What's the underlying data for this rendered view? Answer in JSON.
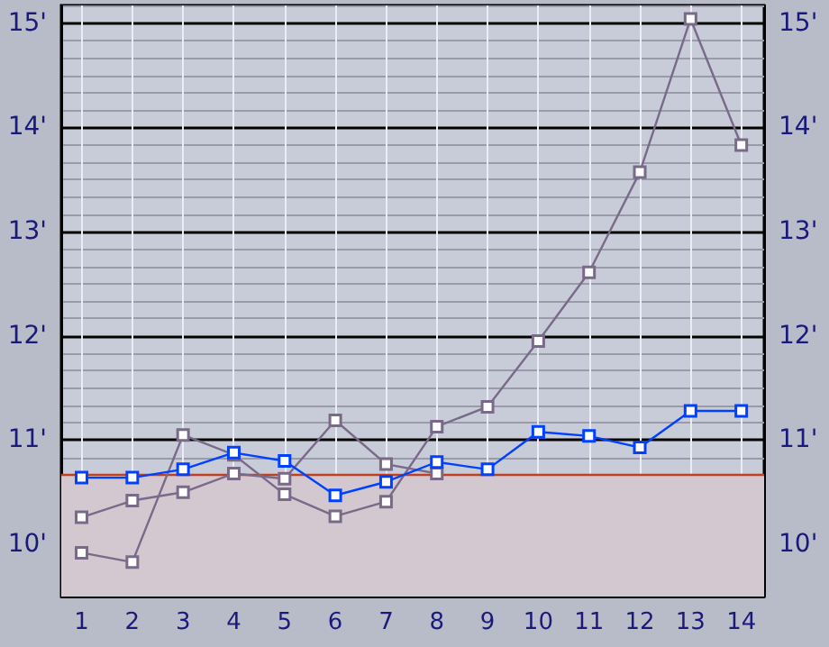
{
  "chart_data": {
    "type": "line",
    "x": [
      1,
      2,
      3,
      4,
      5,
      6,
      7,
      8,
      9,
      10,
      11,
      12,
      13,
      14
    ],
    "series": [
      {
        "color": "#0040ff",
        "values": [
          10.64,
          10.64,
          10.72,
          10.88,
          10.8,
          10.47,
          10.6,
          10.79,
          10.72,
          11.08,
          11.04,
          10.93,
          11.28,
          11.28
        ]
      },
      {
        "color": "#7a6a8a",
        "values": [
          9.92,
          9.83,
          11.05,
          10.86,
          10.48,
          10.27,
          10.41,
          11.13,
          11.32,
          11.95,
          12.61,
          13.57,
          15.04,
          13.83
        ]
      },
      {
        "color": "#7a6a8a",
        "values": [
          10.26,
          10.42,
          10.5,
          10.68,
          10.63,
          11.19,
          10.77,
          10.68,
          null,
          null,
          null,
          null,
          null,
          null
        ]
      }
    ],
    "xlim": [
      0.6,
      14.45
    ],
    "xticks": [
      1,
      2,
      3,
      4,
      5,
      6,
      7,
      8,
      9,
      10,
      11,
      12,
      13,
      14
    ],
    "ylim": [
      9.5,
      15.17
    ],
    "yticks": [
      {
        "value": 10,
        "label": "10'"
      },
      {
        "value": 11,
        "label": "11'"
      },
      {
        "value": 12,
        "label": "12'"
      },
      {
        "value": 13,
        "label": "13'"
      },
      {
        "value": 14,
        "label": "14'"
      },
      {
        "value": 15,
        "label": "15'"
      }
    ],
    "y2lim": [
      9.5,
      15.17
    ],
    "y2ticks": [
      {
        "value": 10,
        "label": "10'"
      },
      {
        "value": 11,
        "label": "11'"
      },
      {
        "value": 12,
        "label": "12'"
      },
      {
        "value": 13,
        "label": "13'"
      },
      {
        "value": 14,
        "label": "14'"
      },
      {
        "value": 15,
        "label": "15'"
      }
    ],
    "bands": [
      {
        "axis": "y",
        "from": 9.5,
        "to": 10.667,
        "color": "#d4c8d0"
      }
    ],
    "ref_lines": [
      {
        "axis": "y",
        "value": 10.667,
        "color": "#c04020"
      }
    ],
    "grid": true,
    "marker": "square",
    "line_style": "solid"
  }
}
